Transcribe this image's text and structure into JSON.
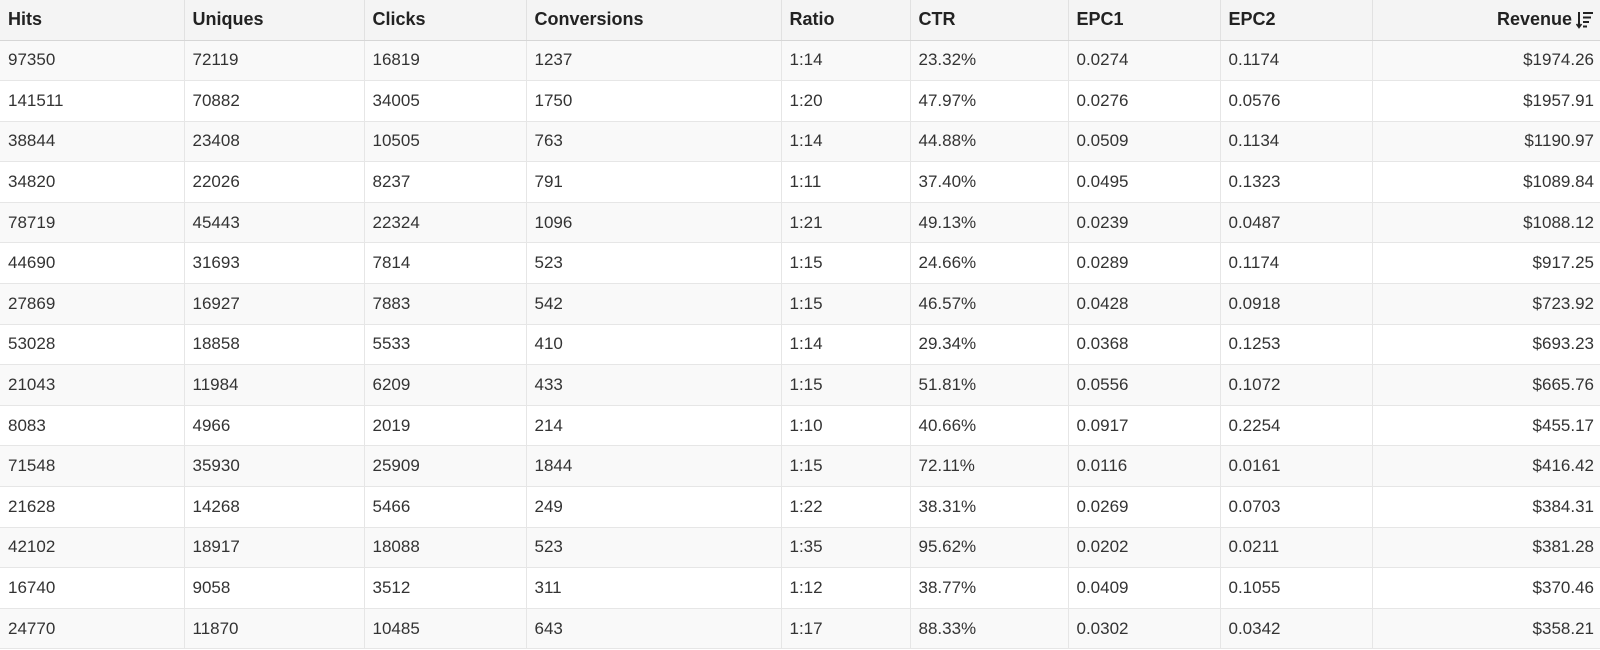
{
  "table": {
    "columns": [
      "Hits",
      "Uniques",
      "Clicks",
      "Conversions",
      "Ratio",
      "CTR",
      "EPC1",
      "EPC2",
      "Revenue"
    ],
    "sort": {
      "column": "Revenue",
      "direction": "descending",
      "icon": "sort-descending-icon"
    },
    "rows": [
      [
        "97350",
        "72119",
        "16819",
        "1237",
        "1:14",
        "23.32%",
        "0.0274",
        "0.1174",
        "$1974.26"
      ],
      [
        "141511",
        "70882",
        "34005",
        "1750",
        "1:20",
        "47.97%",
        "0.0276",
        "0.0576",
        "$1957.91"
      ],
      [
        "38844",
        "23408",
        "10505",
        "763",
        "1:14",
        "44.88%",
        "0.0509",
        "0.1134",
        "$1190.97"
      ],
      [
        "34820",
        "22026",
        "8237",
        "791",
        "1:11",
        "37.40%",
        "0.0495",
        "0.1323",
        "$1089.84"
      ],
      [
        "78719",
        "45443",
        "22324",
        "1096",
        "1:21",
        "49.13%",
        "0.0239",
        "0.0487",
        "$1088.12"
      ],
      [
        "44690",
        "31693",
        "7814",
        "523",
        "1:15",
        "24.66%",
        "0.0289",
        "0.1174",
        "$917.25"
      ],
      [
        "27869",
        "16927",
        "7883",
        "542",
        "1:15",
        "46.57%",
        "0.0428",
        "0.0918",
        "$723.92"
      ],
      [
        "53028",
        "18858",
        "5533",
        "410",
        "1:14",
        "29.34%",
        "0.0368",
        "0.1253",
        "$693.23"
      ],
      [
        "21043",
        "11984",
        "6209",
        "433",
        "1:15",
        "51.81%",
        "0.0556",
        "0.1072",
        "$665.76"
      ],
      [
        "8083",
        "4966",
        "2019",
        "214",
        "1:10",
        "40.66%",
        "0.0917",
        "0.2254",
        "$455.17"
      ],
      [
        "71548",
        "35930",
        "25909",
        "1844",
        "1:15",
        "72.11%",
        "0.0116",
        "0.0161",
        "$416.42"
      ],
      [
        "21628",
        "14268",
        "5466",
        "249",
        "1:22",
        "38.31%",
        "0.0269",
        "0.0703",
        "$384.31"
      ],
      [
        "42102",
        "18917",
        "18088",
        "523",
        "1:35",
        "95.62%",
        "0.0202",
        "0.0211",
        "$381.28"
      ],
      [
        "16740",
        "9058",
        "3512",
        "311",
        "1:12",
        "38.77%",
        "0.0409",
        "0.1055",
        "$370.46"
      ],
      [
        "24770",
        "11870",
        "10485",
        "643",
        "1:17",
        "88.33%",
        "0.0302",
        "0.0342",
        "$358.21"
      ]
    ]
  }
}
